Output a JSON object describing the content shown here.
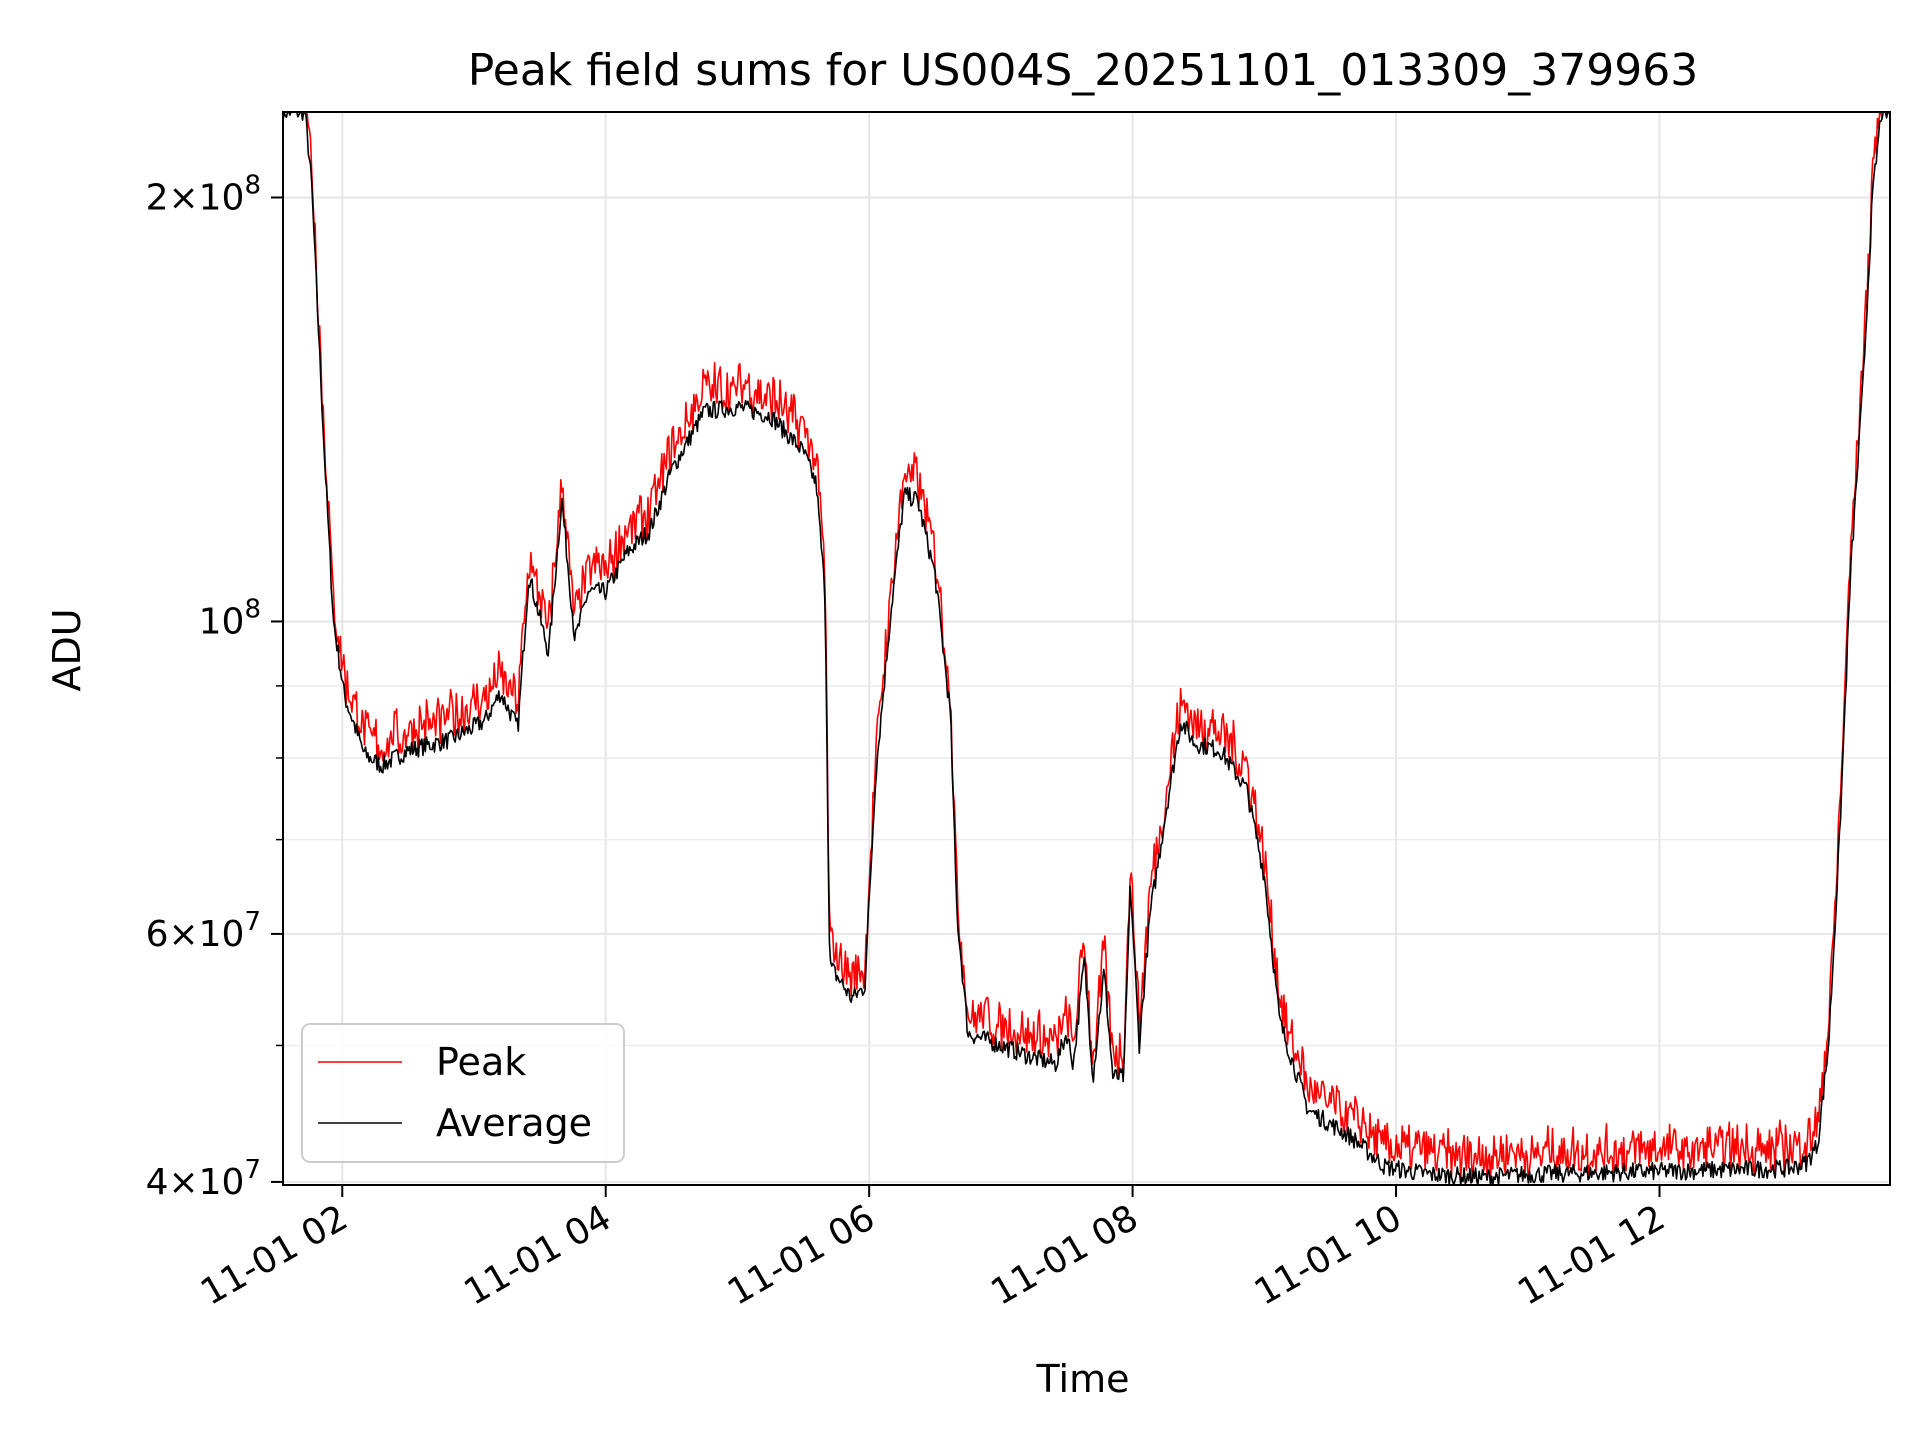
{
  "chart_data": {
    "type": "line",
    "title": "Peak field sums for US004S_20251101_013309_379963",
    "xlabel": "Time",
    "ylabel": "ADU",
    "yscale": "log",
    "grid": true,
    "legend": {
      "placement": "lower-left"
    },
    "xlim": [
      "2025-11-01 01:33",
      "2025-11-01 13:45"
    ],
    "ylim": [
      39800000,
      230000000
    ],
    "x_ticks": [
      {
        "t": "2025-11-01 02:00",
        "label": "11-01 02"
      },
      {
        "t": "2025-11-01 04:00",
        "label": "11-01 04"
      },
      {
        "t": "2025-11-01 06:00",
        "label": "11-01 06"
      },
      {
        "t": "2025-11-01 08:00",
        "label": "11-01 08"
      },
      {
        "t": "2025-11-01 10:00",
        "label": "11-01 10"
      },
      {
        "t": "2025-11-01 12:00",
        "label": "11-01 12"
      }
    ],
    "y_ticks": [
      {
        "value": 200000000,
        "base": "2",
        "exp": "8",
        "label": "2×10^8"
      },
      {
        "value": 100000000,
        "base": "",
        "exp": "8",
        "label": "10^8"
      },
      {
        "value": 60000000,
        "base": "6",
        "exp": "7",
        "label": "6×10^7"
      },
      {
        "value": 40000000,
        "base": "4",
        "exp": "7",
        "label": "4×10^7"
      }
    ],
    "y_minor_ticks": [
      50000000,
      70000000,
      80000000,
      90000000
    ],
    "series": [
      {
        "name": "Peak",
        "color": "#ff0000",
        "noise_up": 0.035
      },
      {
        "name": "Average",
        "color": "#000000",
        "noise_up": 0.0
      }
    ],
    "x": [
      "2025-11-01 01:33",
      "2025-11-01 01:43",
      "2025-11-01 01:46",
      "2025-11-01 01:52",
      "2025-11-01 01:56",
      "2025-11-01 02:01",
      "2025-11-01 02:10",
      "2025-11-01 02:18",
      "2025-11-01 02:30",
      "2025-11-01 02:50",
      "2025-11-01 03:05",
      "2025-11-01 03:12",
      "2025-11-01 03:20",
      "2025-11-01 03:25",
      "2025-11-01 03:34",
      "2025-11-01 03:40",
      "2025-11-01 03:46",
      "2025-11-01 03:52",
      "2025-11-01 04:00",
      "2025-11-01 04:10",
      "2025-11-01 04:20",
      "2025-11-01 04:30",
      "2025-11-01 04:45",
      "2025-11-01 05:00",
      "2025-11-01 05:15",
      "2025-11-01 05:30",
      "2025-11-01 05:36",
      "2025-11-01 05:40",
      "2025-11-01 05:42",
      "2025-11-01 05:52",
      "2025-11-01 05:58",
      "2025-11-01 06:03",
      "2025-11-01 06:10",
      "2025-11-01 06:16",
      "2025-11-01 06:22",
      "2025-11-01 06:30",
      "2025-11-01 06:37",
      "2025-11-01 06:40",
      "2025-11-01 06:45",
      "2025-11-01 07:00",
      "2025-11-01 07:15",
      "2025-11-01 07:25",
      "2025-11-01 07:30",
      "2025-11-01 07:33",
      "2025-11-01 07:38",
      "2025-11-01 07:42",
      "2025-11-01 07:47",
      "2025-11-01 07:51",
      "2025-11-01 07:56",
      "2025-11-01 07:59",
      "2025-11-01 08:03",
      "2025-11-01 08:08",
      "2025-11-01 08:15",
      "2025-11-01 08:22",
      "2025-11-01 08:28",
      "2025-11-01 08:40",
      "2025-11-01 08:52",
      "2025-11-01 09:00",
      "2025-11-01 09:07",
      "2025-11-01 09:20",
      "2025-11-01 09:40",
      "2025-11-01 09:55",
      "2025-11-01 10:15",
      "2025-11-01 10:40",
      "2025-11-01 11:00",
      "2025-11-01 11:30",
      "2025-11-01 12:00",
      "2025-11-01 12:30",
      "2025-11-01 13:00",
      "2025-11-01 13:07",
      "2025-11-01 13:12",
      "2025-11-01 13:17",
      "2025-11-01 13:22",
      "2025-11-01 13:27",
      "2025-11-01 13:33",
      "2025-11-01 13:37",
      "2025-11-01 13:41",
      "2025-11-01 13:45"
    ],
    "average_values": [
      230000000,
      230000000,
      205000000,
      130000000,
      100000000,
      88500000,
      80500000,
      79000000,
      81000000,
      82500000,
      85000000,
      89000000,
      84000000,
      108000000,
      95000000,
      122000000,
      97000000,
      105000000,
      105000000,
      112000000,
      116000000,
      128000000,
      141000000,
      142000000,
      140000000,
      132000000,
      125000000,
      104000000,
      57000000,
      54000000,
      55000000,
      78000000,
      102000000,
      123000000,
      122000000,
      108000000,
      86000000,
      62000000,
      51000000,
      50000000,
      49000000,
      48500000,
      51000000,
      48500000,
      57500000,
      47500000,
      56500000,
      47500000,
      47500000,
      65000000,
      50000000,
      62000000,
      73000000,
      85000000,
      82000000,
      81000000,
      76000000,
      66000000,
      52000000,
      45000000,
      43000000,
      41000000,
      40500000,
      40300000,
      40500000,
      40600000,
      40700000,
      40800000,
      40900000,
      41300000,
      42500000,
      50000000,
      70000000,
      108000000,
      150000000,
      200000000,
      230000000,
      230000000
    ]
  }
}
